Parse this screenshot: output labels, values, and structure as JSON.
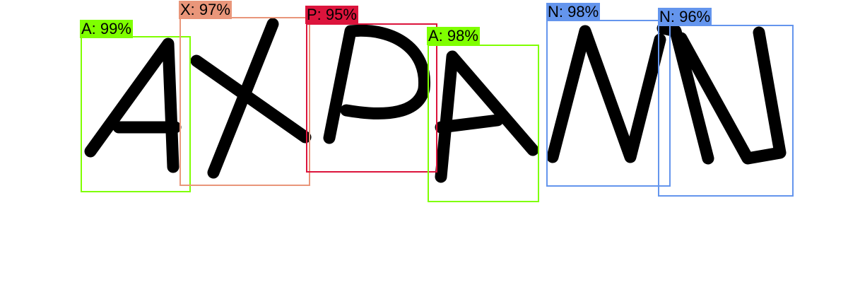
{
  "detections": [
    {
      "text": "A: 99%",
      "color": "#7FFF00"
    },
    {
      "text": "X: 97%",
      "color": "#E9967A"
    },
    {
      "text": "P: 95%",
      "color": "#DC143C"
    },
    {
      "text": "A: 98%",
      "color": "#7FFF00"
    },
    {
      "text": "N: 98%",
      "color": "#6495ED"
    },
    {
      "text": "N: 96%",
      "color": "#6495ED"
    }
  ]
}
